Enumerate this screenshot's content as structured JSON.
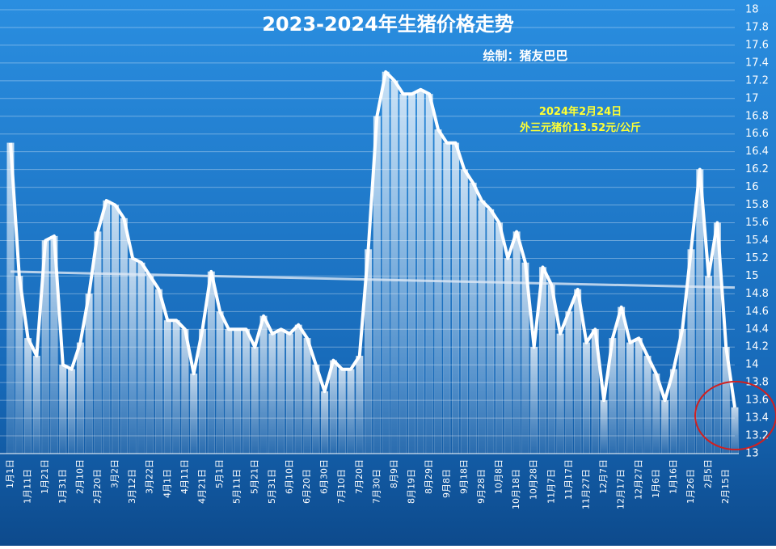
{
  "chart_data": {
    "type": "area-line",
    "title": "2023-2024年生猪价格走势",
    "subtitle": "绘制：猪友巴巴",
    "annotation": [
      "2024年2月24日",
      "外三元猪价13.52元/公斤"
    ],
    "categories": [
      "1月1日",
      null,
      "1月11日",
      null,
      "1月21日",
      null,
      "1月31日",
      null,
      "2月10日",
      null,
      "2月20日",
      null,
      "3月2日",
      null,
      "3月12日",
      null,
      "3月22日",
      null,
      "4月1日",
      null,
      "4月11日",
      null,
      "4月21日",
      null,
      "5月1日",
      null,
      "5月11日",
      null,
      "5月21日",
      null,
      "5月31日",
      null,
      "6月10日",
      null,
      "6月20日",
      null,
      "6月30日",
      null,
      "7月10日",
      null,
      "7月20日",
      null,
      "7月30日",
      null,
      "8月9日",
      null,
      "8月19日",
      null,
      "8月29日",
      null,
      "9月8日",
      null,
      "9月18日",
      null,
      "9月28日",
      null,
      "10月8日",
      null,
      "10月18日",
      null,
      "10月28日",
      null,
      "11月7日",
      null,
      "11月17日",
      null,
      "11月27日",
      null,
      "12月7日",
      null,
      "12月17日",
      null,
      "12月27日",
      null,
      "1月6日",
      null,
      "1月16日",
      null,
      "1月26日",
      null,
      "2月5日",
      null,
      "2月15日",
      null
    ],
    "values": [
      16.5,
      15.0,
      14.3,
      14.1,
      15.4,
      15.45,
      14.0,
      13.95,
      14.25,
      14.8,
      15.5,
      15.85,
      15.8,
      15.65,
      15.2,
      15.15,
      15.0,
      14.85,
      14.5,
      14.5,
      14.4,
      13.9,
      14.4,
      15.05,
      14.6,
      14.4,
      14.4,
      14.4,
      14.2,
      14.55,
      14.35,
      14.4,
      14.35,
      14.45,
      14.3,
      14.0,
      13.7,
      14.05,
      13.95,
      13.95,
      14.1,
      15.3,
      16.8,
      17.3,
      17.2,
      17.05,
      17.05,
      17.1,
      17.05,
      16.65,
      16.5,
      16.5,
      16.2,
      16.05,
      15.85,
      15.75,
      15.6,
      15.2,
      15.5,
      15.15,
      14.2,
      15.1,
      14.9,
      14.35,
      14.6,
      14.85,
      14.25,
      14.4,
      13.6,
      14.3,
      14.65,
      14.25,
      14.3,
      14.1,
      13.9,
      13.6,
      13.95,
      14.4,
      15.3,
      16.2,
      15.0,
      15.6,
      14.2,
      13.52
    ],
    "trendline": [
      15.05,
      14.87
    ],
    "color": "#ffffff",
    "ylim": [
      13,
      18
    ],
    "yticks": [
      13,
      13.2,
      13.4,
      13.6,
      13.8,
      14,
      14.2,
      14.4,
      14.6,
      14.8,
      15,
      15.2,
      15.4,
      15.6,
      15.8,
      16,
      16.2,
      16.4,
      16.6,
      16.8,
      17,
      17.2,
      17.4,
      17.6,
      17.8,
      18
    ],
    "grid": true
  }
}
